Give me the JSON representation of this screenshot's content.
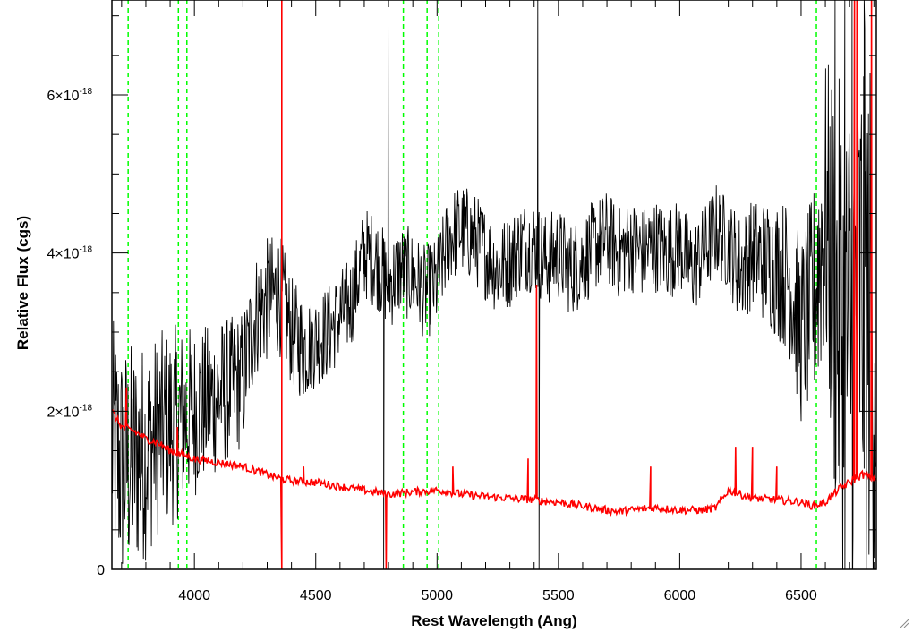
{
  "chart_data": {
    "type": "line",
    "title": "",
    "xlabel": "Rest Wavelength (Ang)",
    "ylabel": "Relative Flux (cgs)",
    "xlim": [
      3660,
      6810
    ],
    "ylim": [
      0,
      7.2e-18
    ],
    "xticks": [
      {
        "value": 4000,
        "label": "4000"
      },
      {
        "value": 4500,
        "label": "4500"
      },
      {
        "value": 5000,
        "label": "5000"
      },
      {
        "value": 5500,
        "label": "5500"
      },
      {
        "value": 6000,
        "label": "6000"
      },
      {
        "value": 6500,
        "label": "6500"
      }
    ],
    "yticks": [
      {
        "value": 0,
        "mantissa": "0",
        "exponent": ""
      },
      {
        "value": 2e-18,
        "mantissa": "2×10",
        "exponent": "-18"
      },
      {
        "value": 4e-18,
        "mantissa": "4×10",
        "exponent": "-18"
      },
      {
        "value": 6e-18,
        "mantissa": "6×10",
        "exponent": "-18"
      }
    ],
    "grid": false,
    "legend": "none",
    "series": [
      {
        "color": "#000000",
        "x": [
          3660,
          3700,
          3750,
          3800,
          3850,
          3900,
          3950,
          4000,
          4050,
          4100,
          4150,
          4200,
          4250,
          4300,
          4350,
          4400,
          4450,
          4500,
          4550,
          4600,
          4650,
          4700,
          4750,
          4800,
          4850,
          4900,
          4950,
          5000,
          5050,
          5100,
          5150,
          5200,
          5250,
          5300,
          5350,
          5400,
          5450,
          5500,
          5550,
          5600,
          5650,
          5700,
          5750,
          5800,
          5850,
          5900,
          5950,
          6000,
          6050,
          6100,
          6150,
          6200,
          6250,
          6300,
          6350,
          6400,
          6450,
          6500,
          6550,
          6600,
          6650,
          6700,
          6750,
          6800
        ],
        "y": [
          1.6e-18,
          1.3e-18,
          1.4e-18,
          1.5e-18,
          1.7e-18,
          1.8e-18,
          1.9e-18,
          2e-18,
          2.1e-18,
          2.2e-18,
          2.3e-18,
          2.4e-18,
          3.2e-18,
          3.4e-18,
          3.5e-18,
          3e-18,
          2.8e-18,
          2.9e-18,
          3e-18,
          3.2e-18,
          3.4e-18,
          4e-18,
          3.9e-18,
          3.6e-18,
          3.8e-18,
          3.7e-18,
          3.5e-18,
          3.6e-18,
          4.2e-18,
          4.3e-18,
          4.2e-18,
          4e-18,
          3.8e-18,
          3.9e-18,
          4.1e-18,
          4.1e-18,
          3.9e-18,
          4e-18,
          3.8e-18,
          3.9e-18,
          4.1e-18,
          4.2e-18,
          4e-18,
          4.1e-18,
          4e-18,
          4.1e-18,
          4e-18,
          4.1e-18,
          3.8e-18,
          4e-18,
          4.3e-18,
          4.1e-18,
          3.8e-18,
          4e-18,
          3.9e-18,
          3.8e-18,
          3.7e-18,
          3e-18,
          3.4e-18,
          4.5e-18,
          3.2e-18,
          2.8e-18,
          3.5e-18,
          3e-18
        ],
        "noise_amplitude": [
          1.6e-18,
          1.6e-18,
          1.5e-18,
          1.4e-18,
          1.3e-18,
          1.3e-18,
          1.2e-18,
          1.1e-18,
          1e-18,
          1e-18,
          9e-19,
          9e-19,
          8e-19,
          8e-19,
          8e-19,
          7e-19,
          7e-19,
          6e-19,
          6e-19,
          6e-19,
          6e-19,
          6e-19,
          6e-19,
          6e-19,
          6e-19,
          6e-19,
          6e-19,
          6e-19,
          6e-19,
          6e-19,
          6e-19,
          6e-19,
          6e-19,
          6e-19,
          6e-19,
          6e-19,
          6e-19,
          6e-19,
          6e-19,
          6e-19,
          6e-19,
          6e-19,
          6e-19,
          6e-19,
          6e-19,
          6e-19,
          6e-19,
          6e-19,
          6e-19,
          6e-19,
          6e-19,
          6e-19,
          7e-19,
          7e-19,
          8e-19,
          9e-19,
          1e-18,
          1.2e-18,
          1.4e-18,
          2e-18,
          3e-18,
          3.5e-18,
          3.5e-18,
          3.5e-18
        ],
        "spikes": [
          {
            "x": 4798,
            "y": 7.2e-18
          },
          {
            "x": 4780,
            "y": 0
          },
          {
            "x": 5415,
            "y": 7.2e-18
          },
          {
            "x": 5420,
            "y": 0
          },
          {
            "x": 6640,
            "y": 7.2e-18
          },
          {
            "x": 6680,
            "y": 7.2e-18
          },
          {
            "x": 6710,
            "y": 7.2e-18
          },
          {
            "x": 6760,
            "y": 7.2e-18
          },
          {
            "x": 6790,
            "y": 7.2e-18
          }
        ]
      },
      {
        "color": "#ff0000",
        "x": [
          3660,
          3700,
          3750,
          3800,
          3850,
          3900,
          3950,
          4000,
          4100,
          4200,
          4300,
          4350,
          4400,
          4500,
          4600,
          4700,
          4800,
          4900,
          5000,
          5050,
          5100,
          5200,
          5300,
          5400,
          5450,
          5500,
          5600,
          5700,
          5750,
          5800,
          5900,
          6000,
          6100,
          6150,
          6200,
          6250,
          6300,
          6400,
          6500,
          6550,
          6600,
          6650,
          6700,
          6750,
          6800
        ],
        "y": [
          2e-18,
          1.8e-18,
          1.75e-18,
          1.65e-18,
          1.6e-18,
          1.5e-18,
          1.45e-18,
          1.4e-18,
          1.35e-18,
          1.3e-18,
          1.2e-18,
          1.15e-18,
          1.12e-18,
          1.1e-18,
          1.05e-18,
          1e-18,
          9.5e-19,
          9.8e-19,
          1e-18,
          9.8e-19,
          9.5e-19,
          9.2e-19,
          9e-19,
          8.8e-19,
          8.6e-19,
          8.5e-19,
          8e-19,
          7.5e-19,
          7.3e-19,
          7.5e-19,
          7.8e-19,
          7.5e-19,
          7.5e-19,
          7.8e-19,
          1e-18,
          9.5e-19,
          9e-19,
          8.8e-19,
          8.5e-19,
          8e-19,
          8.5e-19,
          1e-18,
          1.1e-18,
          1.2e-18,
          1.15e-18
        ],
        "noise_amplitude": 5e-20,
        "spikes": [
          {
            "x": 4360,
            "y": 7.2e-18
          },
          {
            "x": 4360,
            "y": 0
          },
          {
            "x": 4790,
            "y": 0
          },
          {
            "x": 5410,
            "y": 3.6e-18
          },
          {
            "x": 3720,
            "y": 2.3e-18
          },
          {
            "x": 3930,
            "y": 1.8e-18
          },
          {
            "x": 4450,
            "y": 1.3e-18
          },
          {
            "x": 5065,
            "y": 1.3e-18
          },
          {
            "x": 5375,
            "y": 1.4e-18
          },
          {
            "x": 5880,
            "y": 1.3e-18
          },
          {
            "x": 6230,
            "y": 1.55e-18
          },
          {
            "x": 6300,
            "y": 1.55e-18
          },
          {
            "x": 6400,
            "y": 1.3e-18
          },
          {
            "x": 6720,
            "y": 7.2e-18
          },
          {
            "x": 6730,
            "y": 7.2e-18
          },
          {
            "x": 6790,
            "y": 7.2e-18
          }
        ]
      }
    ],
    "reference_lines": {
      "color": "#00ff00",
      "style": "dashed",
      "x": [
        3727,
        3934,
        3969,
        4861,
        4959,
        5007,
        6563
      ]
    }
  }
}
